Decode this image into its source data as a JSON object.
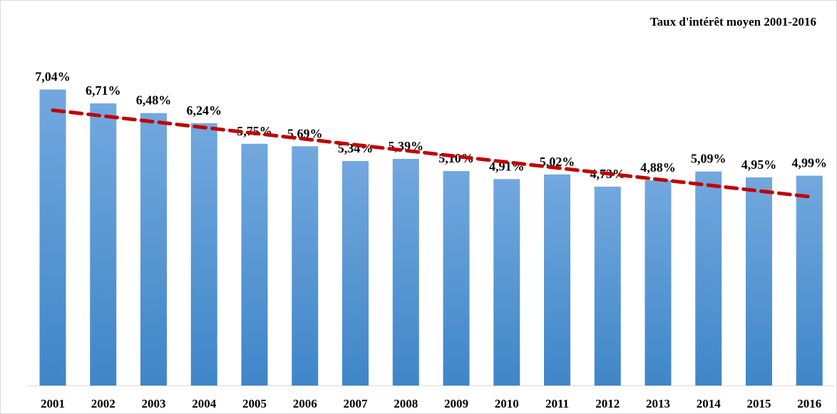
{
  "chart_data": {
    "type": "bar",
    "title": "Taux d'intérêt moyen 2001-2016",
    "categories": [
      "2001",
      "2002",
      "2003",
      "2004",
      "2005",
      "2006",
      "2007",
      "2008",
      "2009",
      "2010",
      "2011",
      "2012",
      "2013",
      "2014",
      "2015",
      "2016"
    ],
    "values": [
      7.04,
      6.71,
      6.48,
      6.24,
      5.75,
      5.69,
      5.34,
      5.39,
      5.1,
      4.91,
      5.02,
      4.73,
      4.88,
      5.09,
      4.95,
      4.99
    ],
    "value_labels": [
      "7,04%",
      "6,71%",
      "6,48%",
      "6,24%",
      "5,75%",
      "5,69%",
      "5,34%",
      "5,39%",
      "5,10%",
      "4,91%",
      "5,02%",
      "4,73%",
      "4,88%",
      "5,09%",
      "4,95%",
      "4,99%"
    ],
    "color": "#5b9bd5",
    "trendline": {
      "color": "#c00000"
    }
  }
}
